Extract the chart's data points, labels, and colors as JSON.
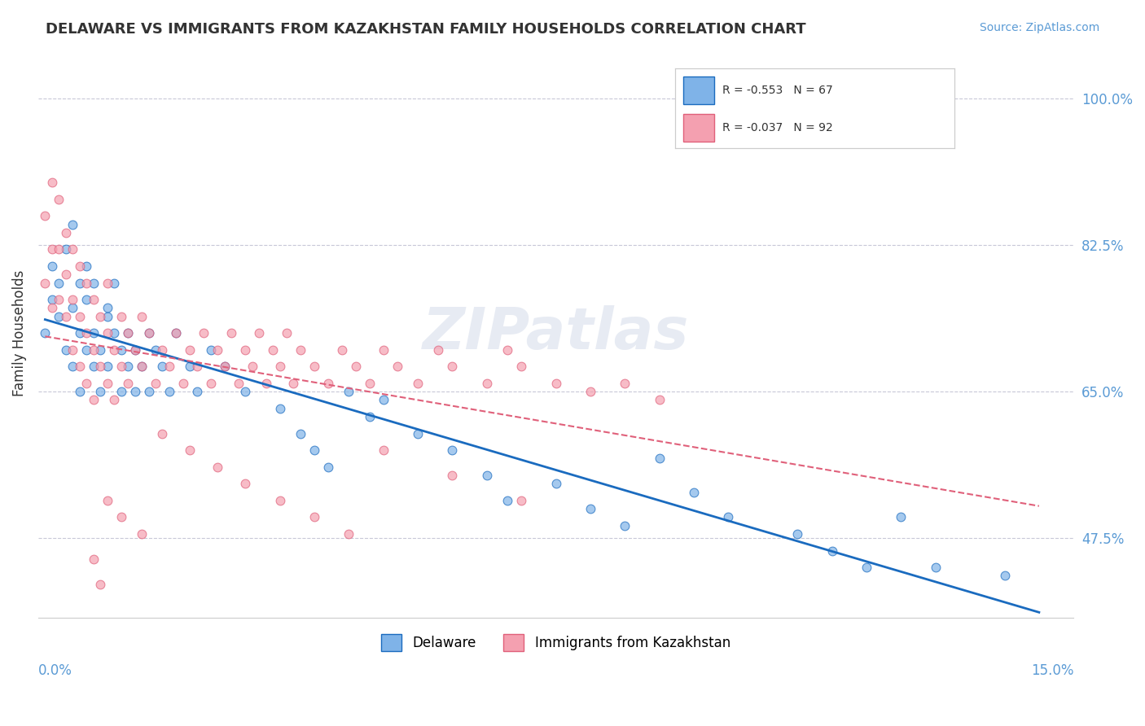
{
  "title": "DELAWARE VS IMMIGRANTS FROM KAZAKHSTAN FAMILY HOUSEHOLDS CORRELATION CHART",
  "source_text": "Source: ZipAtlas.com",
  "ylabel": "Family Households",
  "ylabel_ticks": [
    "47.5%",
    "65.0%",
    "82.5%",
    "100.0%"
  ],
  "ylabel_values": [
    0.475,
    0.65,
    0.825,
    1.0
  ],
  "xmin": 0.0,
  "xmax": 0.15,
  "ymin": 0.38,
  "ymax": 1.06,
  "series_blue": {
    "label": "Delaware",
    "R": -0.553,
    "N": 67,
    "color": "#7fb3e8",
    "line_color": "#1a6bbf"
  },
  "series_pink": {
    "label": "Immigrants from Kazakhstan",
    "R": -0.037,
    "N": 92,
    "color": "#f4a0b0",
    "line_color": "#e0607a"
  },
  "watermark": "ZIPatlas",
  "grid_color": "#c8c8d8",
  "background_color": "#ffffff",
  "blue_scatter_x": [
    0.001,
    0.002,
    0.002,
    0.003,
    0.003,
    0.004,
    0.004,
    0.005,
    0.005,
    0.005,
    0.006,
    0.006,
    0.006,
    0.007,
    0.007,
    0.007,
    0.008,
    0.008,
    0.008,
    0.009,
    0.009,
    0.01,
    0.01,
    0.01,
    0.011,
    0.011,
    0.012,
    0.012,
    0.013,
    0.013,
    0.014,
    0.014,
    0.015,
    0.016,
    0.016,
    0.017,
    0.018,
    0.019,
    0.02,
    0.022,
    0.023,
    0.025,
    0.027,
    0.03,
    0.035,
    0.038,
    0.04,
    0.042,
    0.045,
    0.048,
    0.05,
    0.055,
    0.06,
    0.065,
    0.068,
    0.075,
    0.08,
    0.085,
    0.09,
    0.095,
    0.1,
    0.11,
    0.115,
    0.12,
    0.125,
    0.13,
    0.14
  ],
  "blue_scatter_y": [
    0.72,
    0.8,
    0.76,
    0.74,
    0.78,
    0.82,
    0.7,
    0.68,
    0.75,
    0.85,
    0.72,
    0.78,
    0.65,
    0.7,
    0.76,
    0.8,
    0.68,
    0.72,
    0.78,
    0.65,
    0.7,
    0.74,
    0.68,
    0.75,
    0.72,
    0.78,
    0.65,
    0.7,
    0.68,
    0.72,
    0.65,
    0.7,
    0.68,
    0.72,
    0.65,
    0.7,
    0.68,
    0.65,
    0.72,
    0.68,
    0.65,
    0.7,
    0.68,
    0.65,
    0.63,
    0.6,
    0.58,
    0.56,
    0.65,
    0.62,
    0.64,
    0.6,
    0.58,
    0.55,
    0.52,
    0.54,
    0.51,
    0.49,
    0.57,
    0.53,
    0.5,
    0.48,
    0.46,
    0.44,
    0.5,
    0.44,
    0.43
  ],
  "pink_scatter_x": [
    0.001,
    0.001,
    0.002,
    0.002,
    0.002,
    0.003,
    0.003,
    0.003,
    0.004,
    0.004,
    0.004,
    0.005,
    0.005,
    0.005,
    0.006,
    0.006,
    0.006,
    0.007,
    0.007,
    0.007,
    0.008,
    0.008,
    0.008,
    0.009,
    0.009,
    0.01,
    0.01,
    0.01,
    0.011,
    0.011,
    0.012,
    0.012,
    0.013,
    0.013,
    0.014,
    0.015,
    0.015,
    0.016,
    0.017,
    0.018,
    0.019,
    0.02,
    0.021,
    0.022,
    0.023,
    0.024,
    0.025,
    0.026,
    0.027,
    0.028,
    0.029,
    0.03,
    0.031,
    0.032,
    0.033,
    0.034,
    0.035,
    0.036,
    0.037,
    0.038,
    0.04,
    0.042,
    0.044,
    0.046,
    0.048,
    0.05,
    0.052,
    0.055,
    0.058,
    0.06,
    0.065,
    0.068,
    0.07,
    0.075,
    0.08,
    0.085,
    0.09,
    0.01,
    0.012,
    0.015,
    0.018,
    0.022,
    0.026,
    0.03,
    0.035,
    0.04,
    0.045,
    0.05,
    0.06,
    0.07,
    0.008,
    0.009
  ],
  "pink_scatter_y": [
    0.86,
    0.78,
    0.82,
    0.9,
    0.75,
    0.88,
    0.82,
    0.76,
    0.84,
    0.79,
    0.74,
    0.82,
    0.76,
    0.7,
    0.8,
    0.74,
    0.68,
    0.78,
    0.72,
    0.66,
    0.76,
    0.7,
    0.64,
    0.74,
    0.68,
    0.72,
    0.66,
    0.78,
    0.7,
    0.64,
    0.74,
    0.68,
    0.72,
    0.66,
    0.7,
    0.74,
    0.68,
    0.72,
    0.66,
    0.7,
    0.68,
    0.72,
    0.66,
    0.7,
    0.68,
    0.72,
    0.66,
    0.7,
    0.68,
    0.72,
    0.66,
    0.7,
    0.68,
    0.72,
    0.66,
    0.7,
    0.68,
    0.72,
    0.66,
    0.7,
    0.68,
    0.66,
    0.7,
    0.68,
    0.66,
    0.7,
    0.68,
    0.66,
    0.7,
    0.68,
    0.66,
    0.7,
    0.68,
    0.66,
    0.65,
    0.66,
    0.64,
    0.52,
    0.5,
    0.48,
    0.6,
    0.58,
    0.56,
    0.54,
    0.52,
    0.5,
    0.48,
    0.58,
    0.55,
    0.52,
    0.45,
    0.42
  ]
}
